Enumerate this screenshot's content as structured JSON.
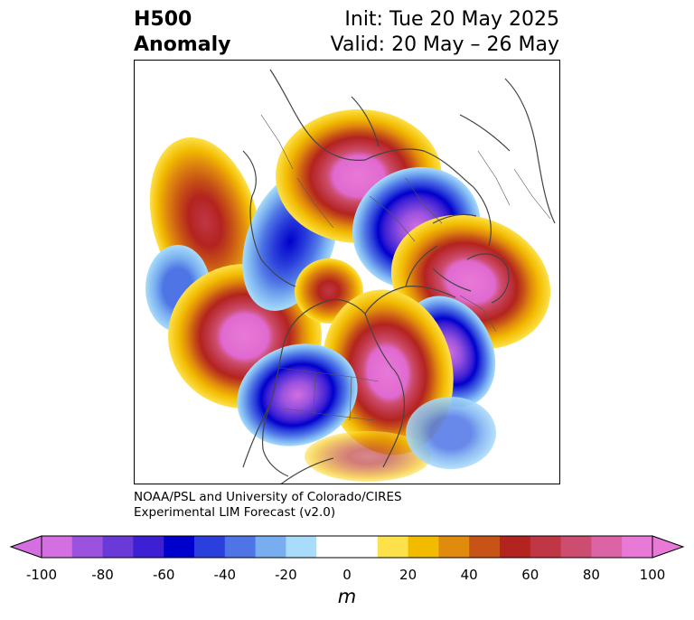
{
  "title": {
    "left_line1": "H500",
    "left_line2": "Anomaly",
    "right_line1": "Init: Tue 20 May 2025",
    "right_line2": "Valid: 20 May – 26 May"
  },
  "credit": {
    "line1": "NOAA/PSL and University of Colorado/CIRES",
    "line2": "Experimental LIM Forecast (v2.0)"
  },
  "colorbar": {
    "unit": "m",
    "ticks": [
      "-100",
      "-80",
      "-60",
      "-40",
      "-20",
      "0",
      "20",
      "40",
      "60",
      "80",
      "100"
    ],
    "colors": [
      "#d36fe0",
      "#9b52de",
      "#6a3ad9",
      "#3d1fd4",
      "#0000cc",
      "#2a3fdb",
      "#4e74e6",
      "#78aef0",
      "#a9dcfa",
      "#ffffff",
      "#ffffff",
      "#fde14a",
      "#f2bb00",
      "#e08a0e",
      "#c75316",
      "#b3231f",
      "#c03645",
      "#cd4d70",
      "#dc63a5",
      "#e879d7"
    ]
  },
  "map": {
    "anomaly_centers": [
      {
        "sign": "positive",
        "level": 100
      },
      {
        "sign": "negative",
        "level": -100
      },
      {
        "sign": "positive",
        "level": 100
      },
      {
        "sign": "positive",
        "level": 100
      },
      {
        "sign": "positive",
        "level": 100
      },
      {
        "sign": "negative",
        "level": -100
      },
      {
        "sign": "negative",
        "level": -40
      },
      {
        "sign": "negative",
        "level": -60
      },
      {
        "sign": "positive",
        "level": 80
      },
      {
        "sign": "negative",
        "level": -60
      },
      {
        "sign": "positive",
        "level": 60
      }
    ]
  }
}
